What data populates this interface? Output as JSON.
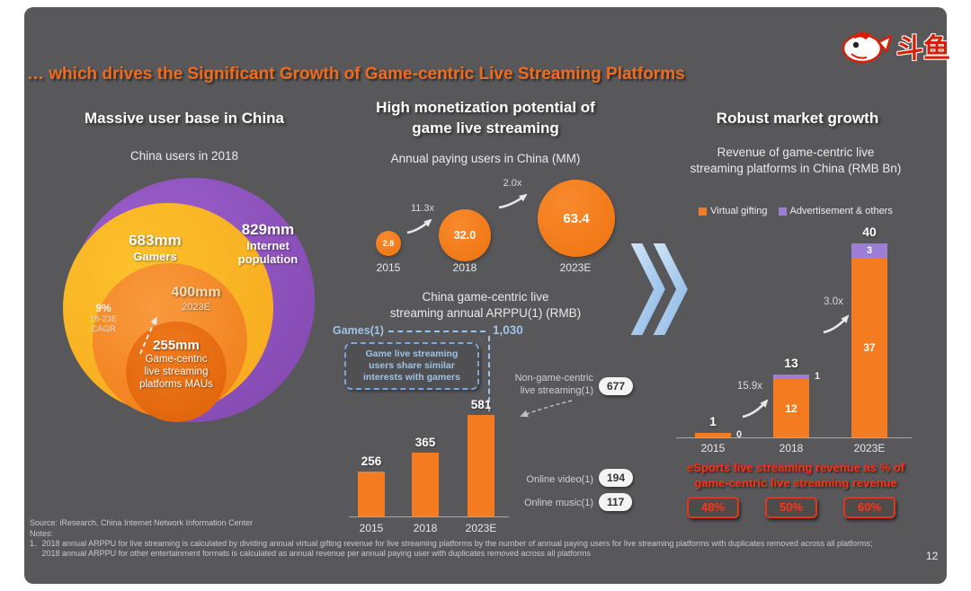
{
  "slide": {
    "title": "… which drives the Significant Growth of Game-centric Live Streaming Platforms",
    "page_number": "12",
    "logo_text": "斗鱼"
  },
  "colors": {
    "slide_background": "#58585B",
    "accent_orange": "#F47B20",
    "gold": "#F9B117",
    "purple": "#8E4EC0",
    "legend_purple": "#9B7FD4",
    "light_blue": "#9DC3E6",
    "red": "#FF2F12"
  },
  "left_panel": {
    "header": "Massive user base in China",
    "subtitle": "China users in 2018",
    "internet": {
      "value": "829mm",
      "label_line1": "Internet",
      "label_line2": "population"
    },
    "gamers": {
      "value": "683mm",
      "label": "Gamers"
    },
    "projection": {
      "value": "400mm",
      "label": "2023E"
    },
    "cagr": {
      "line1": "9%",
      "line2": "18-23E",
      "line3": "CAGR"
    },
    "mau": {
      "value": "255mm",
      "label_line1": "Game-centric",
      "label_line2": "live streaming",
      "label_line3": "platforms MAUs"
    }
  },
  "middle_panel": {
    "header_line1": "High monetization potential of",
    "header_line2": "game live streaming",
    "callout_line1": "Game live streaming",
    "callout_line2": "users share similar",
    "callout_line3": "interests with gamers"
  },
  "right_panel": {
    "header": "Robust market growth",
    "esports_line1": "eSports live streaming revenue as % of",
    "esports_line2": "game-centric live streaming revenue",
    "esports_percentages": [
      "48%",
      "50%",
      "60%"
    ]
  },
  "footnotes": {
    "source": "Source: iResearch, China Internet Network Information Center",
    "notes_label": "Notes:",
    "note1_number": "1.",
    "note1_line1": "2018 annual ARPPU for live streaming is calculated by dividing annual virtual gifting revenue for live streaming platforms by the number of annual paying users for live streaming platforms with duplicates removed across all platforms;",
    "note1_line2": "2018 annual ARPPU for other entertainment formats is calculated as annual revenue per annual paying user with duplicates removed across all platforms"
  },
  "chart_data": [
    {
      "type": "scatter",
      "subtype": "bubble",
      "title": "Annual paying users in China (MM)",
      "categories": [
        "2015",
        "2018",
        "2023E"
      ],
      "values": [
        2.8,
        32.0,
        63.4
      ],
      "value_labels": [
        "2.8",
        "32.0",
        "63.4"
      ],
      "growth_labels": [
        "11.3x",
        "2.0x"
      ]
    },
    {
      "type": "bar",
      "title_line1": "China game-centric live",
      "title_line2": "streaming annual ARPPU(1) (RMB)",
      "categories": [
        "2015",
        "2018",
        "2023E"
      ],
      "values": [
        256,
        365,
        581
      ],
      "references": {
        "games": {
          "label": "Games(1)",
          "value": 1030,
          "value_label": "1,030"
        },
        "non_game": {
          "label_line1": "Non-game-centric",
          "label_line2": "live streaming(1)",
          "value": 677
        },
        "online_video": {
          "label": "Online video(1)",
          "value": 194
        },
        "online_music": {
          "label": "Online music(1)",
          "value": 117
        }
      }
    },
    {
      "type": "bar",
      "subtype": "stacked",
      "title_line1": "Revenue of game-centric live",
      "title_line2": "streaming platforms in China (RMB Bn)",
      "categories": [
        "2015",
        "2018",
        "2023E"
      ],
      "series": [
        {
          "name": "Virtual gifting",
          "color": "#F47B20",
          "values": [
            1,
            12,
            37
          ]
        },
        {
          "name": "Advertisement & others",
          "color": "#9B7FD4",
          "values": [
            0,
            1,
            3
          ]
        }
      ],
      "totals": [
        1,
        13,
        40
      ],
      "growth_labels": [
        "15.9x",
        "3.0x"
      ]
    }
  ]
}
